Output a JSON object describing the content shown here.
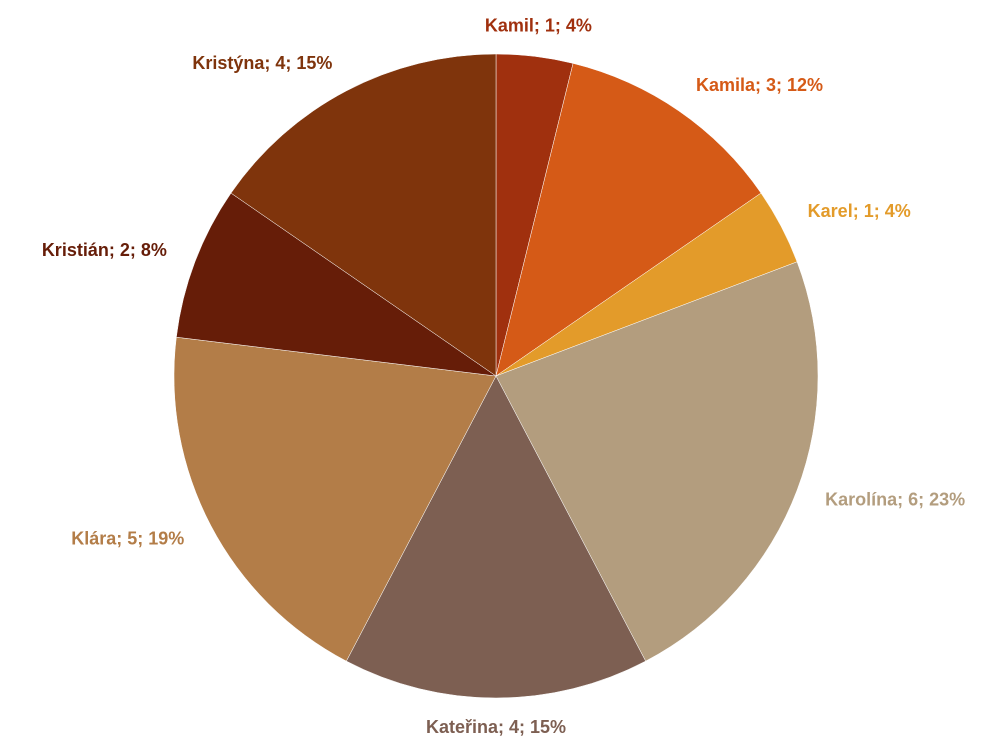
{
  "chart_data": {
    "type": "pie",
    "values": [
      1,
      3,
      1,
      6,
      4,
      5,
      2,
      4
    ],
    "value_labels": [
      "Kamil; 1; 4%",
      "Kamila; 3; 12%",
      "Karel; 1; 4%",
      "Karolína; 6; 23%",
      "Kateřina; 4; 15%",
      "Klára; 5; 19%",
      "Kristián; 2; 8%",
      "Kristýna; 4; 15%"
    ],
    "colors": [
      "#a0300e",
      "#d55a17",
      "#e39b2a",
      "#b39d7e",
      "#7d5f52",
      "#b37d48",
      "#661d08",
      "#7f340c"
    ]
  }
}
